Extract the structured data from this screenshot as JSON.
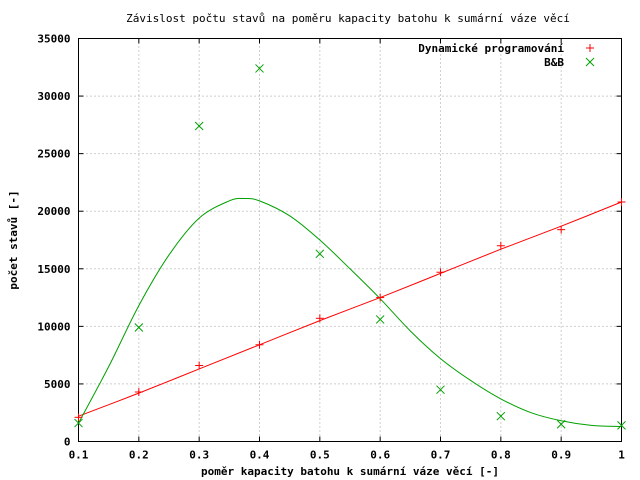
{
  "chart_data": {
    "type": "scatter",
    "title": "Závislost počtu stavů na poměru kapacity batohu k sumární váze věcí",
    "xlabel": "poměr kapacity batohu k sumární váze věcí [-]",
    "ylabel": "počet stavů [-]",
    "xlim": [
      0.1,
      1.0
    ],
    "ylim": [
      0,
      35000
    ],
    "xticks": [
      "0.1",
      "0.2",
      "0.3",
      "0.4",
      "0.5",
      "0.6",
      "0.7",
      "0.8",
      "0.9",
      "1"
    ],
    "yticks": [
      "0",
      "5000",
      "10000",
      "15000",
      "20000",
      "25000",
      "30000",
      "35000"
    ],
    "grid": true,
    "legend_position": "top-right",
    "series": [
      {
        "name": "Dynamické programování",
        "color": "#ff0000",
        "marker": "plus",
        "x": [
          0.1,
          0.2,
          0.3,
          0.4,
          0.5,
          0.6,
          0.7,
          0.8,
          0.9,
          1.0
        ],
        "y": [
          2100,
          4300,
          6600,
          8400,
          10700,
          12500,
          14700,
          17000,
          18400,
          20800
        ],
        "fit_curve": {
          "x": [
            0.1,
            0.2,
            0.3,
            0.4,
            0.5,
            0.6,
            0.7,
            0.8,
            0.9,
            1.0
          ],
          "y": [
            2200,
            4200,
            6300,
            8400,
            10500,
            12500,
            14600,
            16700,
            18700,
            20800
          ]
        }
      },
      {
        "name": "B&B",
        "color": "#00a000",
        "marker": "cross",
        "x": [
          0.1,
          0.2,
          0.3,
          0.4,
          0.5,
          0.6,
          0.7,
          0.8,
          0.9,
          1.0
        ],
        "y": [
          1600,
          9900,
          27400,
          32400,
          16300,
          10600,
          4500,
          2200,
          1500,
          1400
        ],
        "fit_curve": {
          "x": [
            0.1,
            0.15,
            0.2,
            0.25,
            0.3,
            0.35,
            0.375,
            0.4,
            0.45,
            0.5,
            0.55,
            0.6,
            0.65,
            0.7,
            0.75,
            0.8,
            0.85,
            0.9,
            0.95,
            1.0
          ],
          "y": [
            1600,
            6500,
            11800,
            16200,
            19400,
            20900,
            21100,
            20900,
            19600,
            17500,
            15000,
            12400,
            9600,
            7200,
            5300,
            3700,
            2500,
            1800,
            1400,
            1300
          ]
        }
      }
    ]
  }
}
